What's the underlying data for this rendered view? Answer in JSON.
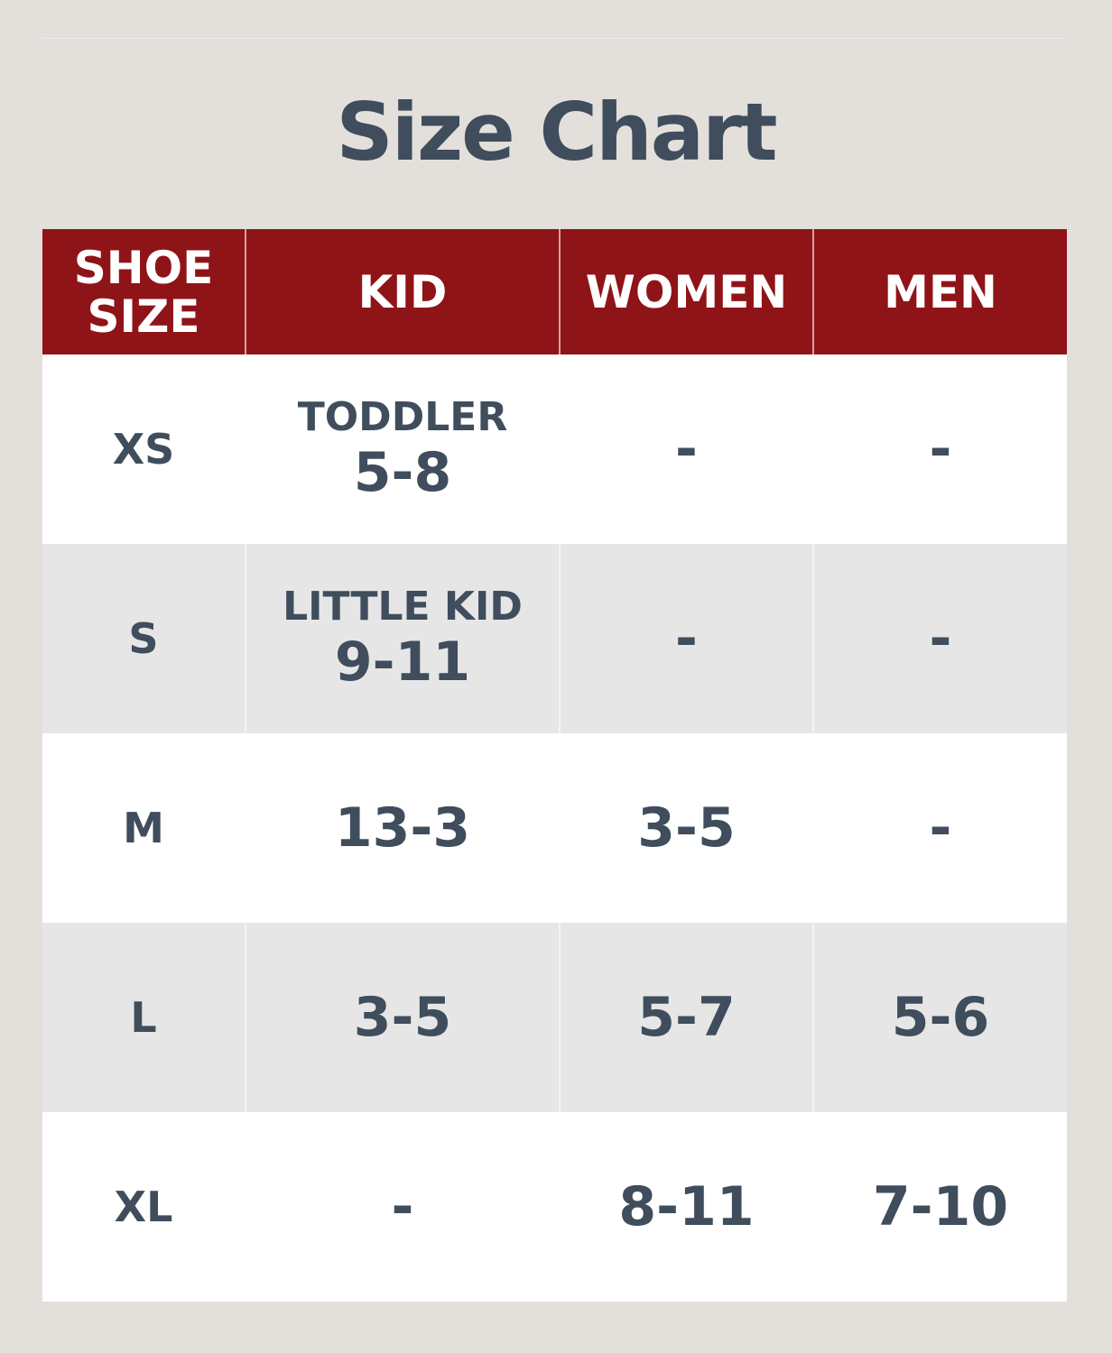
{
  "title": "Size Chart",
  "colors": {
    "header": "#8f1418",
    "text": "#3f4d5c",
    "background": "#e3e0db"
  },
  "columns": [
    "SHOE\nSIZE",
    "KID",
    "WOMEN",
    "MEN"
  ],
  "column_lines": [
    "SHOE",
    "SIZE"
  ],
  "rows": [
    {
      "size": "XS",
      "kid_label": "TODDLER",
      "kid": "5-8",
      "women": "-",
      "men": "-"
    },
    {
      "size": "S",
      "kid_label": "LITTLE KID",
      "kid": "9-11",
      "women": "-",
      "men": "-"
    },
    {
      "size": "M",
      "kid_label": "",
      "kid": "13-3",
      "women": "3-5",
      "men": "-"
    },
    {
      "size": "L",
      "kid_label": "",
      "kid": "3-5",
      "women": "5-7",
      "men": "5-6"
    },
    {
      "size": "XL",
      "kid_label": "",
      "kid": "-",
      "women": "8-11",
      "men": "7-10"
    }
  ]
}
